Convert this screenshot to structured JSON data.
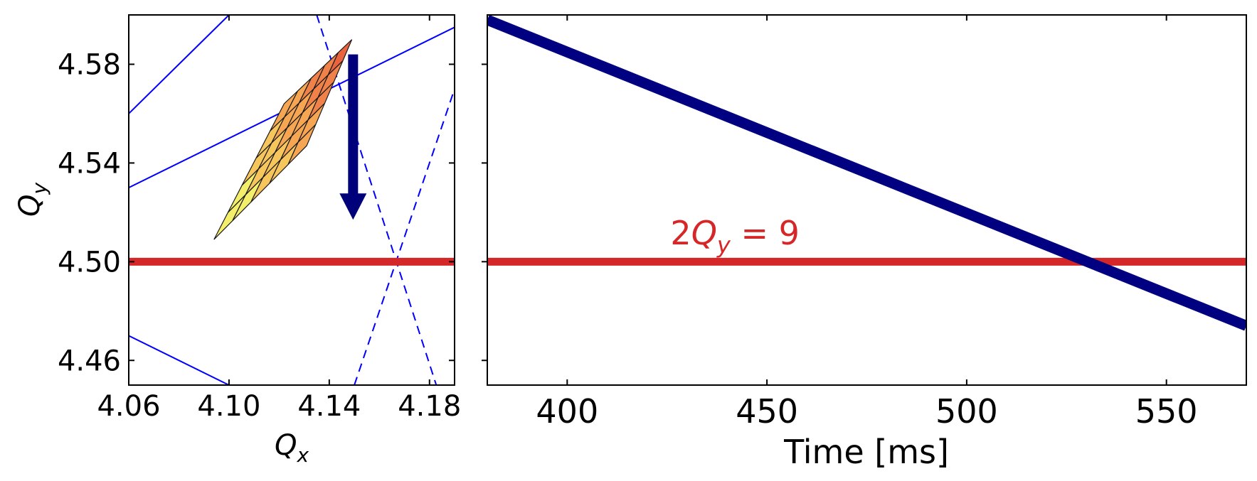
{
  "chart_data": [
    {
      "type": "line",
      "xlabel_base": "Q",
      "xlabel_sub": "x",
      "ylabel_base": "Q",
      "ylabel_sub": "y",
      "xlim": [
        4.06,
        4.19
      ],
      "ylim": [
        4.45,
        4.6
      ],
      "xticks": [
        {
          "value": 4.06,
          "label": "4.06"
        },
        {
          "value": 4.1,
          "label": "4.10"
        },
        {
          "value": 4.14,
          "label": "4.14"
        },
        {
          "value": 4.18,
          "label": "4.18"
        }
      ],
      "yticks": [
        {
          "value": 4.46,
          "label": "4.46"
        },
        {
          "value": 4.5,
          "label": "4.50"
        },
        {
          "value": 4.54,
          "label": "4.54"
        },
        {
          "value": 4.58,
          "label": "4.58"
        }
      ],
      "resonance_lines": [
        {
          "style": "solid",
          "color": "#0000ff",
          "points": [
            [
              4.06,
              4.56
            ],
            [
              4.1,
              4.6
            ]
          ]
        },
        {
          "style": "solid",
          "color": "#0000ff",
          "points": [
            [
              4.06,
              4.53
            ],
            [
              4.19,
              4.595
            ]
          ]
        },
        {
          "style": "solid",
          "color": "#0000ff",
          "points": [
            [
              4.06,
              4.47
            ],
            [
              4.1,
              4.45
            ]
          ]
        },
        {
          "style": "dashed",
          "color": "#0000ff",
          "points": [
            [
              4.135,
              4.6
            ],
            [
              4.1827,
              4.45
            ]
          ]
        },
        {
          "style": "dashed",
          "color": "#0000ff",
          "points": [
            [
              4.15,
              4.45
            ],
            [
              4.19,
              4.57
            ]
          ]
        }
      ],
      "reference_line": {
        "y": 4.5,
        "color": "#d62728"
      },
      "footprint": {
        "tip": [
          4.094,
          4.509
        ],
        "corner_a": [
          4.122,
          4.564
        ],
        "corner_b": [
          4.149,
          4.59
        ],
        "corner_c": [
          4.131,
          4.547
        ],
        "colors": [
          "#f3ef6b",
          "#f6c65d",
          "#f6a653",
          "#f08149",
          "#e9633f"
        ]
      },
      "arrow": {
        "x": 4.1495,
        "y_from": 4.584,
        "y_to": 4.517,
        "color": "#00007a"
      }
    },
    {
      "type": "line",
      "xlabel": "Time [ms]",
      "xlim": [
        380,
        570
      ],
      "ylim": [
        4.45,
        4.6
      ],
      "xticks": [
        {
          "value": 400,
          "label": "400"
        },
        {
          "value": 450,
          "label": "450"
        },
        {
          "value": 500,
          "label": "500"
        },
        {
          "value": 550,
          "label": "550"
        }
      ],
      "yticks": [
        4.46,
        4.5,
        4.54,
        4.58
      ],
      "series": [
        {
          "color": "#000080",
          "x": [
            380,
            570
          ],
          "y": [
            4.598,
            4.474
          ]
        }
      ],
      "reference_line": {
        "y": 4.5,
        "color": "#d62728"
      },
      "annotation": {
        "prefix": "2",
        "base": "Q",
        "sub": "y",
        "suffix": " = 9",
        "x": 442,
        "y": 4.507,
        "color": "#d62728"
      }
    }
  ]
}
